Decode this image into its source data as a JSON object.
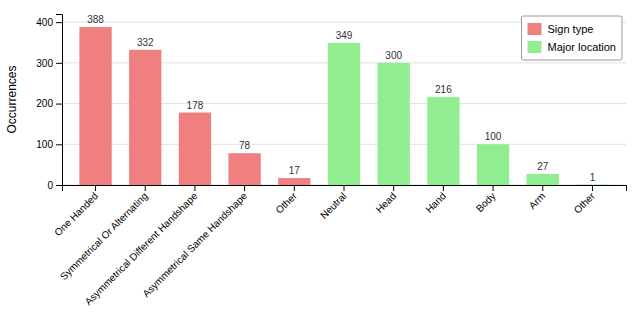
{
  "chart_data": {
    "type": "bar",
    "categories": [
      "One Handed",
      "Symmetrical Or Alternating",
      "Asymmetrical Different Handshape",
      "Asymmetrical Same Handshape",
      "Other",
      "Neutral",
      "Head",
      "Hand",
      "Body",
      "Arm",
      "Other"
    ],
    "series": [
      {
        "name": "Sign type",
        "color": "#F08080",
        "values": [
          388,
          332,
          178,
          78,
          17,
          null,
          null,
          null,
          null,
          null,
          null
        ]
      },
      {
        "name": "Major location",
        "color": "#90EE90",
        "values": [
          null,
          null,
          null,
          null,
          null,
          349,
          300,
          216,
          100,
          27,
          1
        ]
      }
    ],
    "ylabel": "Occurrences",
    "ylim": [
      0,
      420
    ],
    "yticks": [
      0,
      100,
      200,
      300,
      400
    ],
    "grid": true,
    "legend": "top-right",
    "data_labels": true
  }
}
